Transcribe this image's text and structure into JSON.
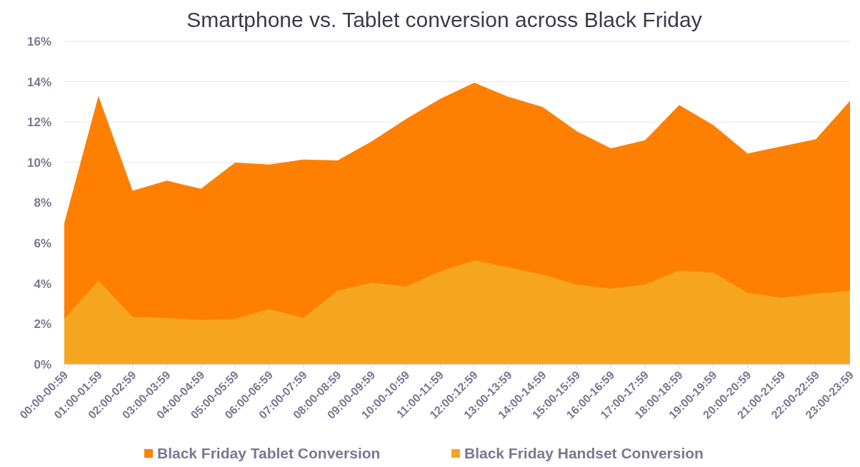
{
  "chart_data": {
    "type": "area",
    "title": "Smartphone vs. Tablet conversion across Black Friday",
    "categories": [
      "00:00-00:59",
      "01:00-01:59",
      "02:00-02:59",
      "03:00-03:59",
      "04:00-04:59",
      "05:00-05:59",
      "06:00-06:59",
      "07:00-07:59",
      "08:00-08:59",
      "09:00-09:59",
      "10:00-10:59",
      "11:00-11:59",
      "12:00:12:59",
      "13:00-13:59",
      "14:00-14:59",
      "15:00-15:59",
      "16:00-16:59",
      "17:00-17:59",
      "18:00-18:59",
      "19:00-19:59",
      "20:00-20:59",
      "21:00-21:59",
      "22:00-22:59",
      "23:00-23:59"
    ],
    "series": [
      {
        "name": "Black Friday Tablet Conversion",
        "color": "#ff7f00",
        "values": [
          7.0,
          13.3,
          8.6,
          9.1,
          8.7,
          10.0,
          9.9,
          10.15,
          10.1,
          11.05,
          12.15,
          13.15,
          13.95,
          13.25,
          12.75,
          11.55,
          10.7,
          11.1,
          12.85,
          11.85,
          10.45,
          10.8,
          11.15,
          13.05
        ]
      },
      {
        "name": "Black Friday Handset Conversion",
        "color": "#f6a61e",
        "values": [
          2.25,
          4.15,
          2.35,
          2.3,
          2.2,
          2.25,
          2.75,
          2.3,
          3.65,
          4.05,
          3.85,
          4.6,
          5.15,
          4.8,
          4.45,
          3.95,
          3.75,
          3.95,
          4.65,
          4.55,
          3.55,
          3.3,
          3.5,
          3.65
        ]
      }
    ],
    "ylim": [
      0,
      16
    ],
    "yticks": [
      {
        "value": 0,
        "label": "0%"
      },
      {
        "value": 2,
        "label": "2%"
      },
      {
        "value": 4,
        "label": "4%"
      },
      {
        "value": 6,
        "label": "6%"
      },
      {
        "value": 8,
        "label": "8%"
      },
      {
        "value": 10,
        "label": "10%"
      },
      {
        "value": 12,
        "label": "12%"
      },
      {
        "value": 14,
        "label": "14%"
      },
      {
        "value": 16,
        "label": "16%"
      }
    ],
    "grid": "y",
    "legend": "bottom"
  }
}
